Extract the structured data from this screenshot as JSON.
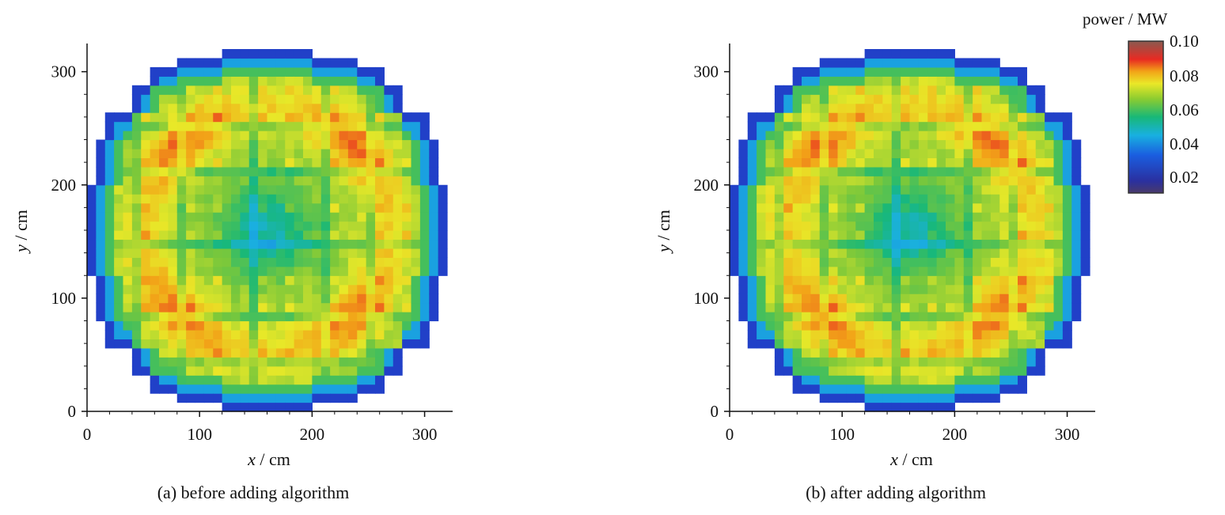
{
  "colors": {
    "outside": "#ffffff",
    "scale": [
      "#3a2a8a",
      "#2140c8",
      "#1aa0e0",
      "#18b878",
      "#7cc83a",
      "#e8e828",
      "#f2a418",
      "#e82a22",
      "#a05a48"
    ]
  },
  "panels": [
    {
      "id": "a",
      "caption": "(a) before adding algorithm",
      "chart_data": {
        "type": "heatmap",
        "xlabel": "x / cm",
        "ylabel": "y / cm",
        "xlim": [
          0,
          320
        ],
        "ylim": [
          0,
          320
        ],
        "xticks": [
          "0",
          "100",
          "200",
          "300"
        ],
        "yticks": [
          "0",
          "100",
          "200",
          "300"
        ],
        "xtick_values": [
          0,
          100,
          200,
          300
        ],
        "ytick_values": [
          0,
          100,
          200,
          300
        ],
        "colorbar_label": "power / MW",
        "colorbar_range": [
          0.01,
          0.1
        ],
        "description_values": "quarter-symmetric core power map: hot (~0.08–0.09 MW) assemblies near four diagonal corners, cooler (~0.04–0.05 MW) center, ~0.02 MW reflector edge"
      }
    },
    {
      "id": "b",
      "caption": "(b) after adding algorithm",
      "chart_data": {
        "type": "heatmap",
        "xlabel": "x / cm",
        "ylabel": "y / cm",
        "xlim": [
          0,
          320
        ],
        "ylim": [
          0,
          320
        ],
        "xticks": [
          "0",
          "100",
          "200",
          "300"
        ],
        "yticks": [
          "0",
          "100",
          "200",
          "300"
        ],
        "xtick_values": [
          0,
          100,
          200,
          300
        ],
        "ytick_values": [
          0,
          100,
          200,
          300
        ],
        "colorbar_label": "power / MW",
        "colorbar_range": [
          0.01,
          0.1
        ],
        "description_values": "quarter-symmetric core power map, nearly identical to (a)"
      }
    }
  ],
  "colorbar": {
    "title": "power / MW",
    "ticks": [
      "0.10",
      "0.08",
      "0.06",
      "0.04",
      "0.02"
    ],
    "tick_values": [
      0.1,
      0.08,
      0.06,
      0.04,
      0.02
    ]
  },
  "axis_text": {
    "x_italic": "x",
    "x_unit": " / cm",
    "y_italic": "y",
    "y_unit": " / cm"
  }
}
